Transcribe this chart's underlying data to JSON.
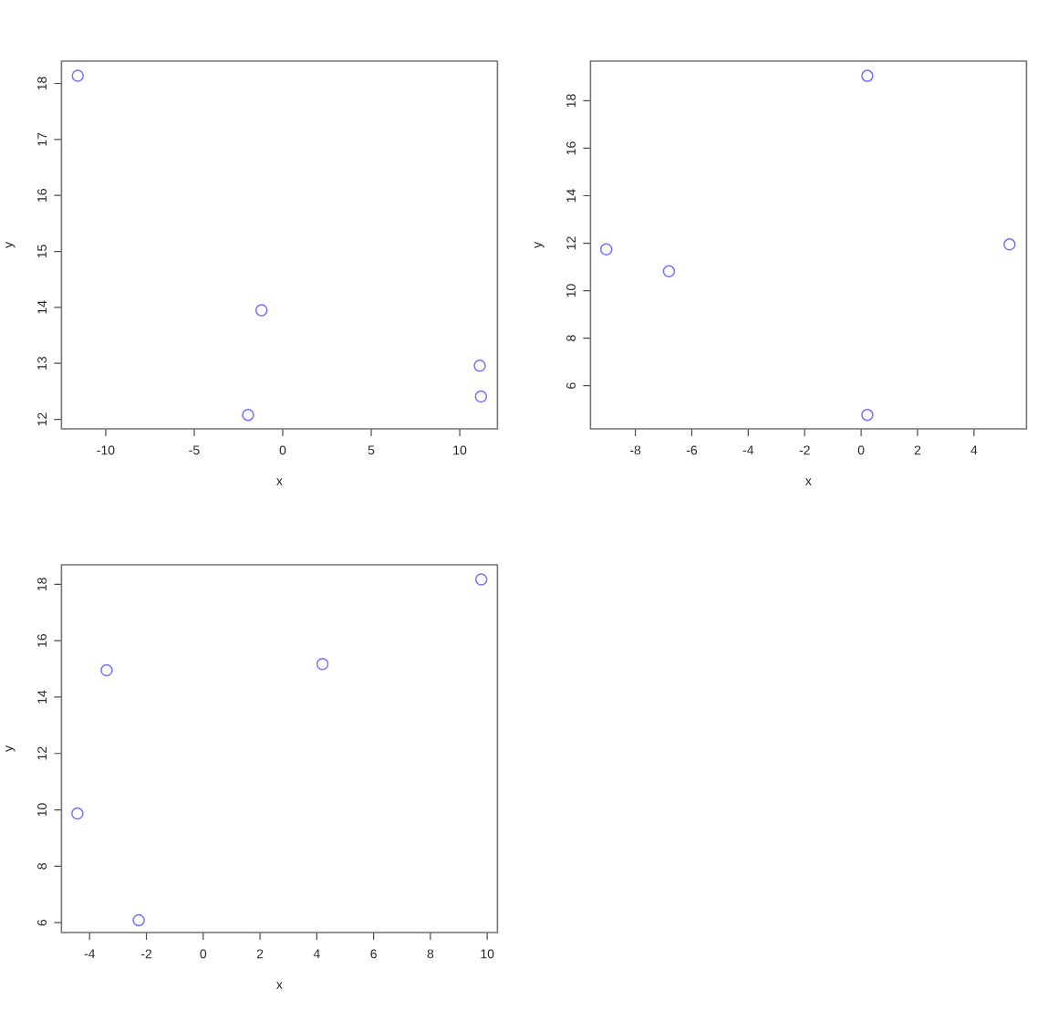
{
  "chart_data": [
    {
      "type": "scatter",
      "xlabel": "x",
      "ylabel": "y",
      "color": "#7272ff",
      "marker": "circle",
      "x": [
        -11.58,
        -1.2,
        -1.96,
        11.13,
        11.2
      ],
      "values": [
        18.14,
        13.95,
        12.08,
        12.96,
        12.41
      ],
      "xlim": [
        -12.5,
        12.13
      ],
      "ylim": [
        11.83,
        18.4
      ],
      "xticks": [
        -10,
        -5,
        0,
        5,
        10
      ],
      "yticks": [
        12,
        13,
        14,
        15,
        16,
        17,
        18
      ]
    },
    {
      "type": "scatter",
      "xlabel": "x",
      "ylabel": "y",
      "color": "#7272ff",
      "marker": "circle",
      "x": [
        -9.03,
        -6.81,
        0.22,
        0.22,
        5.26
      ],
      "values": [
        11.74,
        10.82,
        19.05,
        4.77,
        11.95
      ],
      "xlim": [
        -9.59,
        5.86
      ],
      "ylim": [
        4.18,
        19.67
      ],
      "xticks": [
        -8,
        -6,
        -4,
        -2,
        0,
        2,
        4
      ],
      "yticks": [
        6,
        8,
        10,
        12,
        14,
        16,
        18
      ]
    },
    {
      "type": "scatter",
      "xlabel": "x",
      "ylabel": "y",
      "color": "#7272ff",
      "marker": "circle",
      "x": [
        -4.43,
        -3.4,
        -2.27,
        4.2,
        9.79
      ],
      "values": [
        9.87,
        14.95,
        6.09,
        15.17,
        18.17
      ],
      "xlim": [
        -4.99,
        10.36
      ],
      "ylim": [
        5.65,
        18.69
      ],
      "xticks": [
        -4,
        -2,
        0,
        2,
        4,
        6,
        8,
        10
      ],
      "yticks": [
        6,
        8,
        10,
        12,
        14,
        16,
        18
      ]
    }
  ]
}
